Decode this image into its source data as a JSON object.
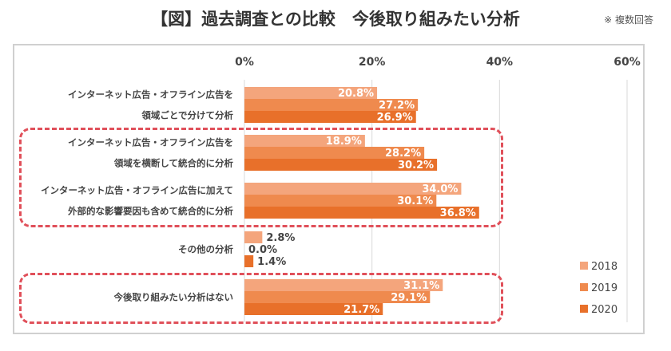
{
  "title": "【図】過去調査との比較　今後取り組みたい分析",
  "note": "※ 複数回答",
  "chart_data": {
    "type": "bar",
    "orientation": "horizontal",
    "title": "【図】過去調査との比較　今後取り組みたい分析",
    "categories": [
      [
        "インターネット広告・オフライン広告を",
        "領域ごとで分けて分析"
      ],
      [
        "インターネット広告・オフライン広告を",
        "領域を横断して統合的に分析"
      ],
      [
        "インターネット広告・オフライン広告に加えて",
        "外部的な影響要因も含めて統合的に分析"
      ],
      [
        "その他の分析"
      ],
      [
        "今後取り組みたい分析はない"
      ]
    ],
    "series": [
      {
        "name": "2018",
        "color": "#f4a57c",
        "values": [
          20.8,
          18.9,
          34.0,
          2.8,
          31.1
        ]
      },
      {
        "name": "2019",
        "color": "#ef8a4e",
        "values": [
          27.2,
          28.2,
          30.1,
          0.0,
          29.1
        ]
      },
      {
        "name": "2020",
        "color": "#e8702a",
        "values": [
          26.9,
          30.2,
          36.8,
          1.4,
          21.7
        ]
      }
    ],
    "xlim": [
      0,
      60
    ],
    "xticks": [
      "0%",
      "20%",
      "40%",
      "60%"
    ],
    "grid": true,
    "legend": "bottom-right",
    "highlighted_categories": [
      1,
      2,
      4
    ]
  }
}
